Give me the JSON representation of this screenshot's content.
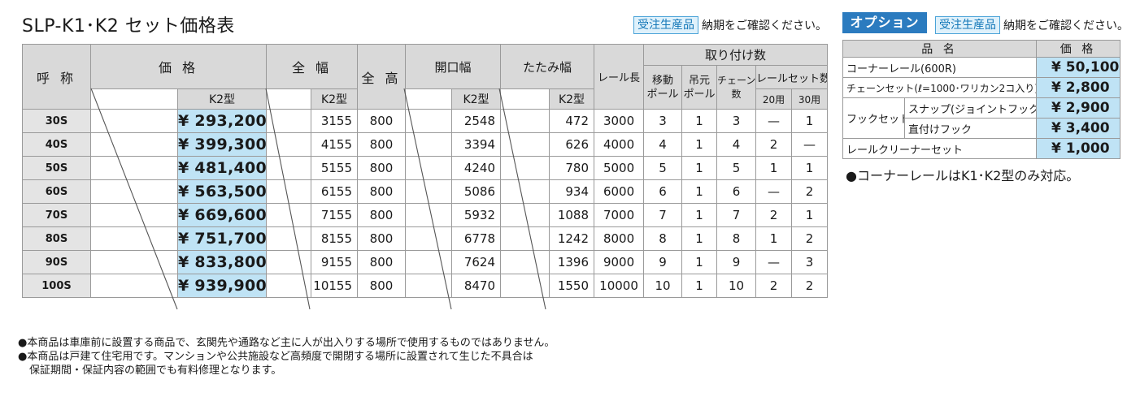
{
  "title": "SLP-K1･K2 セット価格表",
  "badge": "受注生産品",
  "badge_note": "納期をご確認ください。",
  "option_tab": "オプション",
  "main_table": {
    "headers": {
      "name": "呼 称",
      "price": "価 格",
      "width": "全 幅",
      "height": "全 高",
      "opening": "開口幅",
      "folded": "たたみ幅",
      "rail": "レール長",
      "install": "取り付け数",
      "moving_pole": "移動ポール",
      "moving_pole_l1": "移動",
      "moving_pole_l2": "ポール",
      "hang_pole_l1": "吊元",
      "hang_pole_l2": "ポール",
      "chain_l1": "チェーン",
      "chain_l2": "数",
      "rail_set": "レールセット数",
      "rail_20": "20用",
      "rail_30": "30用",
      "k2": "K2型"
    },
    "rows": [
      {
        "name": "30S",
        "price": "¥ 293,200",
        "width": "3155",
        "height": "800",
        "opening": "2548",
        "folded": "472",
        "rail": "3000",
        "moving": "3",
        "hang": "1",
        "chain": "3",
        "r20": "—",
        "r30": "1"
      },
      {
        "name": "40S",
        "price": "¥ 399,300",
        "width": "4155",
        "height": "800",
        "opening": "3394",
        "folded": "626",
        "rail": "4000",
        "moving": "4",
        "hang": "1",
        "chain": "4",
        "r20": "2",
        "r30": "—"
      },
      {
        "name": "50S",
        "price": "¥ 481,400",
        "width": "5155",
        "height": "800",
        "opening": "4240",
        "folded": "780",
        "rail": "5000",
        "moving": "5",
        "hang": "1",
        "chain": "5",
        "r20": "1",
        "r30": "1"
      },
      {
        "name": "60S",
        "price": "¥ 563,500",
        "width": "6155",
        "height": "800",
        "opening": "5086",
        "folded": "934",
        "rail": "6000",
        "moving": "6",
        "hang": "1",
        "chain": "6",
        "r20": "—",
        "r30": "2"
      },
      {
        "name": "70S",
        "price": "¥ 669,600",
        "width": "7155",
        "height": "800",
        "opening": "5932",
        "folded": "1088",
        "rail": "7000",
        "moving": "7",
        "hang": "1",
        "chain": "7",
        "r20": "2",
        "r30": "1"
      },
      {
        "name": "80S",
        "price": "¥ 751,700",
        "width": "8155",
        "height": "800",
        "opening": "6778",
        "folded": "1242",
        "rail": "8000",
        "moving": "8",
        "hang": "1",
        "chain": "8",
        "r20": "1",
        "r30": "2"
      },
      {
        "name": "90S",
        "price": "¥ 833,800",
        "width": "9155",
        "height": "800",
        "opening": "7624",
        "folded": "1396",
        "rail": "9000",
        "moving": "9",
        "hang": "1",
        "chain": "9",
        "r20": "—",
        "r30": "3"
      },
      {
        "name": "100S",
        "price": "¥ 939,900",
        "width": "10155",
        "height": "800",
        "opening": "8470",
        "folded": "1550",
        "rail": "10000",
        "moving": "10",
        "hang": "1",
        "chain": "10",
        "r20": "2",
        "r30": "2"
      }
    ]
  },
  "option_table": {
    "header_item": "品 名",
    "header_price": "価 格",
    "rows": [
      {
        "label": "コーナーレール(600R)",
        "price": "¥ 50,100"
      },
      {
        "label": "チェーンセット(ℓ=1000･ワリカン2コ入り)",
        "price": "¥  2,800"
      },
      {
        "group": "フックセット",
        "label": "スナップ(ジョイントフック)",
        "price": "¥  2,900"
      },
      {
        "group": "フックセット",
        "label": "直付けフック",
        "price": "¥  3,400"
      },
      {
        "label": "レールクリーナーセット",
        "price": "¥  1,000"
      }
    ],
    "note": "●コーナーレールはK1･K2型のみ対応。"
  },
  "footnotes": [
    "●本商品は車庫前に設置する商品で、玄関先や通路など主に人が出入りする場所で使用するものではありません。",
    "●本商品は戸建て住宅用です。マンションや公共施設など高頻度で開閉する場所に設置されて生じた不具合は",
    "保証期間・保証内容の範囲でも有料修理となります。"
  ]
}
